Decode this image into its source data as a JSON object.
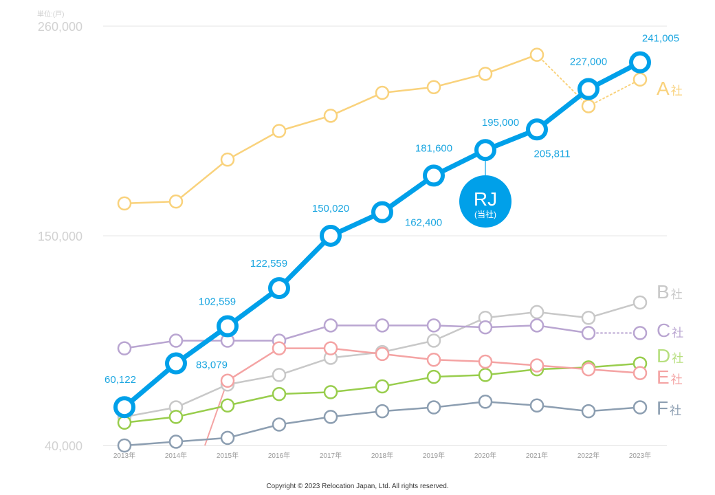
{
  "chart_data": {
    "type": "line",
    "unit_label": "単位:(戸)",
    "categories": [
      "2013年",
      "2014年",
      "2015年",
      "2016年",
      "2017年",
      "2018年",
      "2019年",
      "2020年",
      "2021年",
      "2022年",
      "2023年"
    ],
    "y_ticks": [
      "260,000",
      "150,000",
      "40,000"
    ],
    "ylim": [
      40000,
      260000
    ],
    "grid": true,
    "series": [
      {
        "name": "A社",
        "color": "#f9d27c",
        "values": [
          167000,
          168000,
          190000,
          205000,
          213000,
          225000,
          228000,
          235000,
          245000,
          218000,
          232000
        ],
        "dashed_from": 8
      },
      {
        "name": "RJ(当社)",
        "color": "#00a0e9",
        "values": [
          60122,
          83079,
          102559,
          122559,
          150020,
          162400,
          181600,
          195000,
          205811,
          227000,
          241005
        ]
      },
      {
        "name": "B社",
        "color": "#c8c8c8",
        "values": [
          55000,
          60000,
          72000,
          77000,
          86000,
          89000,
          95000,
          107000,
          110000,
          107000,
          115000
        ]
      },
      {
        "name": "C社",
        "color": "#b9a5d1",
        "values": [
          91000,
          95000,
          95000,
          95000,
          103000,
          103000,
          103000,
          102000,
          103000,
          99000,
          99000
        ],
        "dashed_from": 9
      },
      {
        "name": "D社",
        "color": "#98cd4c",
        "values": [
          52000,
          55000,
          61000,
          67000,
          68000,
          71000,
          76000,
          77000,
          80000,
          81000,
          83000
        ]
      },
      {
        "name": "E社",
        "color": "#f4a3a3",
        "values": [
          null,
          null,
          74000,
          91000,
          91000,
          88000,
          85000,
          84000,
          82000,
          80000,
          78000
        ]
      },
      {
        "name": "F社",
        "color": "#8c9eb1",
        "values": [
          40000,
          42000,
          44000,
          51000,
          55000,
          58000,
          60000,
          63000,
          61000,
          58000,
          60000
        ]
      }
    ],
    "data_labels": [
      "60,122",
      "83,079",
      "102,559",
      "122,559",
      "150,020",
      "162,400",
      "181,600",
      "195,000",
      "205,811",
      "227,000",
      "241,005"
    ],
    "legend": {
      "A": {
        "letter": "A",
        "suffix": "社"
      },
      "B": {
        "letter": "B",
        "suffix": "社"
      },
      "C": {
        "letter": "C",
        "suffix": "社"
      },
      "D": {
        "letter": "D",
        "suffix": "社"
      },
      "E": {
        "letter": "E",
        "suffix": "社"
      },
      "F": {
        "letter": "F",
        "suffix": "社"
      }
    },
    "badge": {
      "title": "RJ",
      "subtitle": "(当社)"
    }
  },
  "copyright": "Copyright © 2023 Relocation Japan, Ltd. All rights reserved."
}
